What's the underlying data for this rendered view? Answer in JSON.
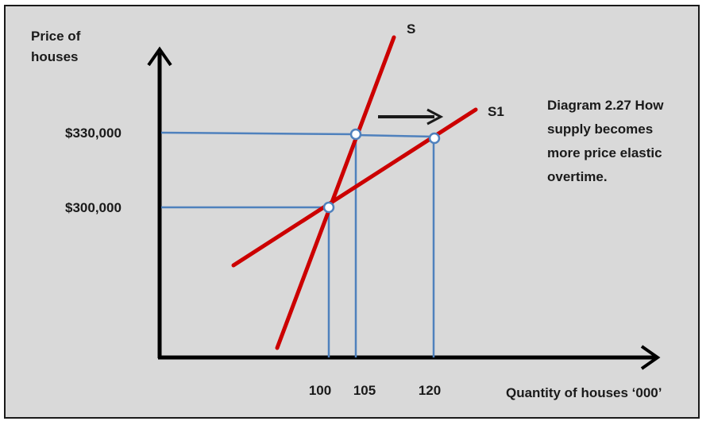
{
  "y_axis_label": [
    "Price of",
    "houses"
  ],
  "x_axis_label": "Quantity of houses ‘000’",
  "price_labels": [
    "$330,000",
    "$300,000"
  ],
  "quantity_labels": [
    "100",
    "105",
    "120"
  ],
  "curve_labels": {
    "s": "S",
    "s1": "S1"
  },
  "caption": [
    "Diagram 2.27 How",
    "supply becomes",
    "more price elastic",
    "overtime."
  ],
  "colors": {
    "curve": "#cc0000",
    "guide": "#4f81bd",
    "axis": "#000000",
    "background": "#d9d9d9"
  }
}
